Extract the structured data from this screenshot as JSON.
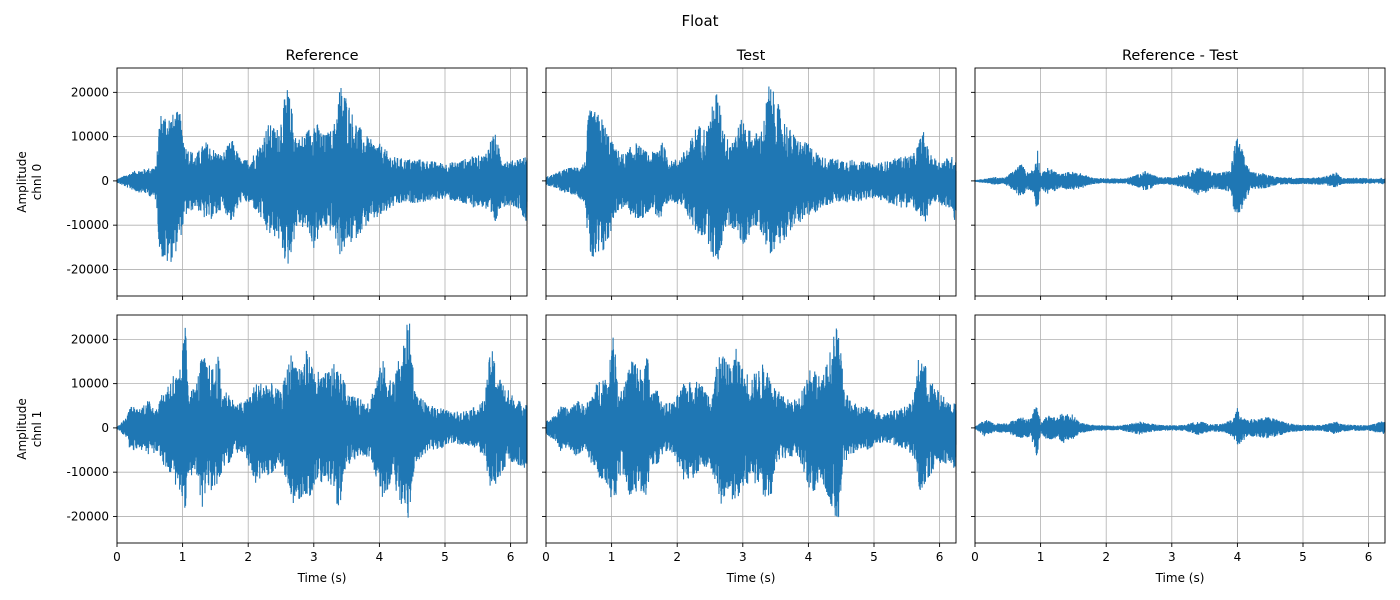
{
  "figure_title": "Float",
  "colors": {
    "line": "#1f77b4",
    "grid": "#b0b0b0"
  },
  "chart_data": {
    "type": "line",
    "xlabel": "Time (s)",
    "xlim": [
      0,
      6.25
    ],
    "ylim": [
      -26000,
      25500
    ],
    "x_ticks": [
      0,
      1,
      2,
      3,
      4,
      5,
      6
    ],
    "y_ticks": [
      -20000,
      -10000,
      0,
      10000,
      20000
    ],
    "grid": true,
    "columns": [
      "Reference",
      "Test",
      "Reference - Test"
    ],
    "rows": [
      {
        "ylabel_line1": "Amplitude",
        "ylabel_line2": "chnl 0"
      },
      {
        "ylabel_line1": "Amplitude",
        "ylabel_line2": "chnl 1"
      }
    ],
    "envelopes": [
      [
        {
          "name": "Reference",
          "t": [
            0,
            0.15,
            0.3,
            0.45,
            0.6,
            0.65,
            0.75,
            0.85,
            0.95,
            1.05,
            1.2,
            1.35,
            1.5,
            1.6,
            1.75,
            1.9,
            2.05,
            2.2,
            2.3,
            2.45,
            2.6,
            2.75,
            2.9,
            3.0,
            3.15,
            3.3,
            3.4,
            3.5,
            3.6,
            3.75,
            3.9,
            4.0,
            4.2,
            4.4,
            4.6,
            4.8,
            5.0,
            5.2,
            5.4,
            5.6,
            5.75,
            5.85,
            6.0,
            6.15,
            6.25
          ],
          "max": [
            400,
            1500,
            2500,
            2800,
            3500,
            15500,
            15800,
            15200,
            16000,
            8000,
            6000,
            9000,
            7000,
            6000,
            9500,
            4500,
            5500,
            9000,
            13000,
            12000,
            21500,
            9500,
            11500,
            14500,
            10500,
            12000,
            22500,
            19500,
            15000,
            11000,
            9000,
            8500,
            5500,
            5000,
            5000,
            4500,
            4000,
            4500,
            5500,
            6000,
            11500,
            6000,
            4500,
            5500,
            5500
          ],
          "min": [
            -400,
            -1500,
            -2500,
            -3000,
            -4500,
            -16500,
            -19500,
            -18000,
            -14000,
            -8000,
            -6000,
            -9000,
            -8500,
            -6000,
            -9500,
            -4500,
            -5500,
            -9000,
            -12500,
            -13000,
            -20000,
            -10000,
            -11500,
            -15500,
            -10500,
            -12000,
            -17000,
            -15000,
            -14000,
            -11000,
            -9000,
            -8500,
            -6000,
            -5000,
            -5000,
            -4500,
            -4000,
            -5000,
            -6000,
            -6000,
            -11000,
            -6000,
            -5500,
            -6500,
            -10500
          ]
        },
        {
          "name": "Test",
          "t": [
            0,
            0.15,
            0.3,
            0.45,
            0.6,
            0.65,
            0.75,
            0.85,
            0.95,
            1.05,
            1.2,
            1.35,
            1.5,
            1.6,
            1.75,
            1.9,
            2.05,
            2.2,
            2.3,
            2.45,
            2.6,
            2.75,
            2.9,
            3.0,
            3.15,
            3.3,
            3.4,
            3.5,
            3.6,
            3.75,
            3.9,
            4.0,
            4.2,
            4.4,
            4.6,
            4.8,
            5.0,
            5.2,
            5.4,
            5.6,
            5.75,
            5.85,
            6.0,
            6.15,
            6.25
          ],
          "max": [
            900,
            1800,
            2800,
            3200,
            4500,
            16000,
            15800,
            14500,
            11000,
            7500,
            6000,
            9000,
            7000,
            6000,
            9500,
            4500,
            5500,
            9000,
            13000,
            12000,
            21000,
            9500,
            11500,
            14500,
            10500,
            12000,
            22500,
            19000,
            15000,
            11000,
            9000,
            8500,
            5500,
            5000,
            5000,
            4500,
            4000,
            4500,
            5500,
            6000,
            11500,
            6000,
            4500,
            5500,
            5500
          ],
          "min": [
            -900,
            -1800,
            -2800,
            -3200,
            -5000,
            -17000,
            -19500,
            -17500,
            -14000,
            -7500,
            -6000,
            -9000,
            -8500,
            -6000,
            -9500,
            -4500,
            -5500,
            -9000,
            -12500,
            -13000,
            -20000,
            -10000,
            -11500,
            -15500,
            -10500,
            -12000,
            -17000,
            -15000,
            -14000,
            -11000,
            -9000,
            -8500,
            -6000,
            -5000,
            -5000,
            -4500,
            -4000,
            -5000,
            -6000,
            -6000,
            -11000,
            -6000,
            -5500,
            -6500,
            -10500
          ]
        },
        {
          "name": "Reference - Test",
          "t": [
            0,
            0.15,
            0.3,
            0.45,
            0.6,
            0.7,
            0.8,
            0.9,
            0.95,
            1.0,
            1.1,
            1.2,
            1.3,
            1.45,
            1.6,
            1.8,
            2.0,
            2.3,
            2.5,
            2.6,
            2.8,
            3.0,
            3.2,
            3.4,
            3.7,
            3.9,
            3.95,
            4.0,
            4.05,
            4.2,
            4.4,
            4.6,
            5.0,
            5.3,
            5.5,
            5.6,
            5.9,
            6.1,
            6.25
          ],
          "max": [
            200,
            500,
            900,
            700,
            2500,
            4000,
            2000,
            2800,
            8000,
            1500,
            3000,
            2500,
            1500,
            2200,
            1800,
            700,
            600,
            600,
            1600,
            2300,
            800,
            900,
            1600,
            3200,
            1800,
            2500,
            8000,
            10000,
            8000,
            2000,
            1800,
            900,
            700,
            900,
            2000,
            700,
            700,
            600,
            800
          ],
          "min": [
            -200,
            -500,
            -900,
            -700,
            -2500,
            -4000,
            -2000,
            -2800,
            -7500,
            -1500,
            -3000,
            -2500,
            -1500,
            -2200,
            -1800,
            -700,
            -600,
            -600,
            -1600,
            -2300,
            -800,
            -900,
            -1600,
            -3200,
            -1800,
            -2500,
            -7500,
            -9200,
            -7000,
            -2000,
            -1800,
            -900,
            -700,
            -900,
            -1500,
            -700,
            -700,
            -600,
            -800
          ]
        }
      ],
      [
        {
          "name": "Reference",
          "t": [
            0,
            0.15,
            0.2,
            0.35,
            0.45,
            0.6,
            0.85,
            0.95,
            1.05,
            1.1,
            1.2,
            1.3,
            1.35,
            1.45,
            1.55,
            1.6,
            1.7,
            1.8,
            1.95,
            2.1,
            2.3,
            2.5,
            2.65,
            2.8,
            2.9,
            3.0,
            3.15,
            3.3,
            3.4,
            3.5,
            3.6,
            3.7,
            3.85,
            4.05,
            4.2,
            4.35,
            4.45,
            4.55,
            4.75,
            4.9,
            5.1,
            5.3,
            5.5,
            5.6,
            5.7,
            5.85,
            6.0,
            6.15,
            6.25
          ],
          "max": [
            300,
            2500,
            5000,
            4500,
            6500,
            5000,
            12500,
            12000,
            24500,
            8500,
            9500,
            17000,
            15500,
            13500,
            16500,
            8500,
            8500,
            5500,
            6000,
            10000,
            11000,
            8000,
            17000,
            14500,
            18000,
            13500,
            12000,
            14500,
            13000,
            9000,
            7500,
            6500,
            6500,
            15500,
            10500,
            18500,
            25500,
            8000,
            5000,
            5000,
            3500,
            4000,
            5000,
            6500,
            18500,
            11000,
            8000,
            6000,
            6000
          ],
          "min": [
            -300,
            -2500,
            -5500,
            -4500,
            -6500,
            -5500,
            -12500,
            -14000,
            -19500,
            -11000,
            -10500,
            -18000,
            -14500,
            -14500,
            -16500,
            -9000,
            -8500,
            -5500,
            -6000,
            -13000,
            -11000,
            -8500,
            -17500,
            -16000,
            -17000,
            -13500,
            -12000,
            -14500,
            -20000,
            -9000,
            -7500,
            -6500,
            -6500,
            -16000,
            -12000,
            -18000,
            -21000,
            -8000,
            -5000,
            -5000,
            -3500,
            -4000,
            -5000,
            -6500,
            -14500,
            -11000,
            -8000,
            -8500,
            -9500
          ]
        },
        {
          "name": "Test",
          "t": [
            0,
            0.15,
            0.2,
            0.35,
            0.45,
            0.6,
            0.85,
            0.95,
            1.05,
            1.1,
            1.2,
            1.3,
            1.35,
            1.45,
            1.55,
            1.6,
            1.7,
            1.8,
            1.95,
            2.1,
            2.3,
            2.5,
            2.65,
            2.8,
            2.9,
            3.0,
            3.15,
            3.3,
            3.4,
            3.5,
            3.6,
            3.7,
            3.85,
            4.05,
            4.2,
            4.35,
            4.45,
            4.55,
            4.75,
            4.9,
            5.1,
            5.3,
            5.5,
            5.6,
            5.7,
            5.85,
            6.0,
            6.15,
            6.25
          ],
          "max": [
            1500,
            3000,
            5000,
            4500,
            6500,
            5000,
            12500,
            12000,
            24500,
            8500,
            9500,
            17000,
            15500,
            13500,
            16500,
            8500,
            8500,
            5500,
            6000,
            10000,
            11000,
            8000,
            17000,
            14500,
            18000,
            13500,
            12000,
            14500,
            13000,
            9000,
            7500,
            6500,
            6500,
            15500,
            10500,
            18500,
            24500,
            8000,
            5000,
            5000,
            3500,
            4000,
            5000,
            6500,
            18500,
            11000,
            8000,
            6000,
            6000
          ],
          "min": [
            -1500,
            -3000,
            -5500,
            -4500,
            -6500,
            -5500,
            -12500,
            -14000,
            -19500,
            -11000,
            -10500,
            -18000,
            -14500,
            -14500,
            -16500,
            -9000,
            -8500,
            -5500,
            -6000,
            -13000,
            -11000,
            -8500,
            -17500,
            -16000,
            -17000,
            -13500,
            -12000,
            -14500,
            -20000,
            -9000,
            -7500,
            -6500,
            -6500,
            -16000,
            -12000,
            -18000,
            -21500,
            -8000,
            -5000,
            -5000,
            -3500,
            -4000,
            -5000,
            -6500,
            -14500,
            -11000,
            -8000,
            -8500,
            -9500
          ]
        },
        {
          "name": "Reference - Test",
          "t": [
            0,
            0.15,
            0.3,
            0.5,
            0.7,
            0.85,
            0.95,
            1.0,
            1.1,
            1.25,
            1.35,
            1.5,
            1.6,
            1.8,
            2.0,
            2.2,
            2.5,
            2.6,
            2.8,
            3.0,
            3.2,
            3.4,
            3.6,
            3.8,
            3.95,
            4.0,
            4.05,
            4.15,
            4.3,
            4.45,
            4.6,
            4.8,
            5.0,
            5.3,
            5.5,
            5.6,
            5.8,
            6.0,
            6.2,
            6.25
          ],
          "max": [
            200,
            2000,
            1000,
            1200,
            2500,
            2000,
            6500,
            1000,
            3000,
            2500,
            3500,
            3000,
            1200,
            700,
            600,
            500,
            1500,
            1200,
            700,
            600,
            700,
            1600,
            800,
            1000,
            2500,
            4500,
            3500,
            2000,
            2000,
            2500,
            2000,
            1000,
            700,
            700,
            1500,
            800,
            700,
            600,
            1500,
            1500
          ],
          "min": [
            -200,
            -2000,
            -1000,
            -1200,
            -2500,
            -2000,
            -7000,
            -1000,
            -3000,
            -2500,
            -3500,
            -2500,
            -1200,
            -700,
            -600,
            -500,
            -1500,
            -1200,
            -700,
            -600,
            -700,
            -1600,
            -800,
            -1000,
            -2500,
            -4000,
            -3500,
            -2000,
            -2000,
            -2500,
            -2000,
            -1000,
            -700,
            -700,
            -1500,
            -800,
            -700,
            -600,
            -1500,
            -1500
          ]
        }
      ]
    ]
  }
}
